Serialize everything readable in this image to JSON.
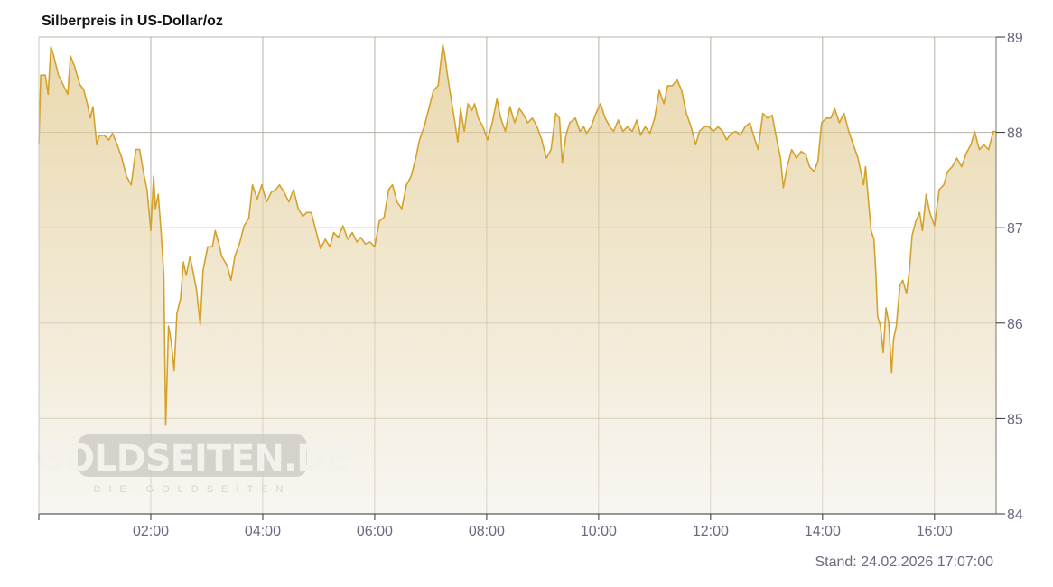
{
  "chart_data": {
    "type": "area",
    "title": "Silberpreis in US-Dollar/oz",
    "xlabel": "",
    "ylabel": "",
    "xlim": [
      "00:00",
      "17:06"
    ],
    "ylim": [
      84,
      89
    ],
    "y_axis_position": "right",
    "grid": true,
    "x_ticks": [
      "02:00",
      "04:00",
      "06:00",
      "08:00",
      "10:00",
      "12:00",
      "14:00",
      "16:00"
    ],
    "y_ticks": [
      84,
      85,
      86,
      87,
      88,
      89
    ],
    "footer": "Stand: 24.02.2026 17:07:00",
    "watermark": {
      "main": "GOLDSEITEN.DE",
      "sub": "DIE·GOLDSEITEN"
    },
    "colors": {
      "line": "#d4a22c",
      "fill_top": "#ead9ae",
      "fill_bottom": "#f8f6f2",
      "grid": "#c8c8c8"
    },
    "series": [
      {
        "points": [
          [
            "00:00",
            87.87
          ],
          [
            "00:02",
            88.6
          ],
          [
            "00:07",
            88.6
          ],
          [
            "00:10",
            88.4
          ],
          [
            "00:13",
            88.9
          ],
          [
            "00:16",
            88.8
          ],
          [
            "00:21",
            88.6
          ],
          [
            "00:26",
            88.5
          ],
          [
            "00:31",
            88.4
          ],
          [
            "00:34",
            88.8
          ],
          [
            "00:38",
            88.7
          ],
          [
            "00:44",
            88.5
          ],
          [
            "00:48",
            88.45
          ],
          [
            "00:52",
            88.3
          ],
          [
            "00:55",
            88.15
          ],
          [
            "00:58",
            88.27
          ],
          [
            "01:02",
            87.87
          ],
          [
            "01:05",
            87.97
          ],
          [
            "01:10",
            87.97
          ],
          [
            "01:15",
            87.92
          ],
          [
            "01:19",
            87.99
          ],
          [
            "01:24",
            87.87
          ],
          [
            "01:29",
            87.73
          ],
          [
            "01:34",
            87.54
          ],
          [
            "01:39",
            87.45
          ],
          [
            "01:44",
            87.82
          ],
          [
            "01:48",
            87.82
          ],
          [
            "01:53",
            87.54
          ],
          [
            "01:56",
            87.4
          ],
          [
            "02:00",
            86.97
          ],
          [
            "02:03",
            87.54
          ],
          [
            "02:05",
            87.2
          ],
          [
            "02:08",
            87.35
          ],
          [
            "02:11",
            86.97
          ],
          [
            "02:14",
            86.5
          ],
          [
            "02:16",
            84.93
          ],
          [
            "02:19",
            85.97
          ],
          [
            "02:22",
            85.8
          ],
          [
            "02:25",
            85.5
          ],
          [
            "02:28",
            86.1
          ],
          [
            "02:32",
            86.26
          ],
          [
            "02:35",
            86.64
          ],
          [
            "02:38",
            86.5
          ],
          [
            "02:42",
            86.7
          ],
          [
            "02:45",
            86.55
          ],
          [
            "02:49",
            86.35
          ],
          [
            "02:53",
            85.98
          ],
          [
            "02:56",
            86.55
          ],
          [
            "03:01",
            86.8
          ],
          [
            "03:06",
            86.8
          ],
          [
            "03:09",
            86.97
          ],
          [
            "03:13",
            86.83
          ],
          [
            "03:16",
            86.7
          ],
          [
            "03:22",
            86.6
          ],
          [
            "03:26",
            86.45
          ],
          [
            "03:30",
            86.7
          ],
          [
            "03:35",
            86.83
          ],
          [
            "03:40",
            87.02
          ],
          [
            "03:45",
            87.1
          ],
          [
            "03:49",
            87.45
          ],
          [
            "03:54",
            87.3
          ],
          [
            "03:59",
            87.45
          ],
          [
            "04:04",
            87.27
          ],
          [
            "04:09",
            87.37
          ],
          [
            "04:14",
            87.4
          ],
          [
            "04:18",
            87.45
          ],
          [
            "04:23",
            87.37
          ],
          [
            "04:28",
            87.27
          ],
          [
            "04:33",
            87.4
          ],
          [
            "04:38",
            87.2
          ],
          [
            "04:43",
            87.12
          ],
          [
            "04:47",
            87.16
          ],
          [
            "04:52",
            87.16
          ],
          [
            "04:57",
            86.97
          ],
          [
            "05:02",
            86.78
          ],
          [
            "05:07",
            86.88
          ],
          [
            "05:12",
            86.8
          ],
          [
            "05:16",
            86.95
          ],
          [
            "05:21",
            86.9
          ],
          [
            "05:26",
            87.02
          ],
          [
            "05:31",
            86.88
          ],
          [
            "05:36",
            86.95
          ],
          [
            "05:41",
            86.85
          ],
          [
            "05:45",
            86.9
          ],
          [
            "05:50",
            86.83
          ],
          [
            "05:55",
            86.85
          ],
          [
            "06:00",
            86.8
          ],
          [
            "06:05",
            87.07
          ],
          [
            "06:10",
            87.11
          ],
          [
            "06:15",
            87.4
          ],
          [
            "06:19",
            87.45
          ],
          [
            "06:24",
            87.27
          ],
          [
            "06:29",
            87.2
          ],
          [
            "06:34",
            87.45
          ],
          [
            "06:39",
            87.54
          ],
          [
            "06:44",
            87.73
          ],
          [
            "06:48",
            87.92
          ],
          [
            "06:53",
            88.06
          ],
          [
            "06:58",
            88.25
          ],
          [
            "07:03",
            88.44
          ],
          [
            "07:08",
            88.49
          ],
          [
            "07:13",
            88.92
          ],
          [
            "07:15",
            88.82
          ],
          [
            "07:18",
            88.6
          ],
          [
            "07:22",
            88.35
          ],
          [
            "07:26",
            88.1
          ],
          [
            "07:29",
            87.9
          ],
          [
            "07:32",
            88.25
          ],
          [
            "07:36",
            88.01
          ],
          [
            "07:40",
            88.3
          ],
          [
            "07:44",
            88.23
          ],
          [
            "07:47",
            88.3
          ],
          [
            "07:51",
            88.15
          ],
          [
            "07:56",
            88.06
          ],
          [
            "08:01",
            87.92
          ],
          [
            "08:06",
            88.1
          ],
          [
            "08:11",
            88.35
          ],
          [
            "08:15",
            88.15
          ],
          [
            "08:20",
            88.01
          ],
          [
            "08:25",
            88.27
          ],
          [
            "08:30",
            88.1
          ],
          [
            "08:35",
            88.25
          ],
          [
            "08:40",
            88.18
          ],
          [
            "08:44",
            88.1
          ],
          [
            "08:49",
            88.15
          ],
          [
            "08:54",
            88.06
          ],
          [
            "08:59",
            87.92
          ],
          [
            "09:04",
            87.73
          ],
          [
            "09:09",
            87.82
          ],
          [
            "09:14",
            88.2
          ],
          [
            "09:18",
            88.15
          ],
          [
            "09:21",
            87.68
          ],
          [
            "09:25",
            87.97
          ],
          [
            "09:29",
            88.1
          ],
          [
            "09:35",
            88.15
          ],
          [
            "09:40",
            88.01
          ],
          [
            "09:44",
            88.06
          ],
          [
            "09:47",
            87.99
          ],
          [
            "09:52",
            88.06
          ],
          [
            "09:57",
            88.2
          ],
          [
            "10:02",
            88.3
          ],
          [
            "10:07",
            88.15
          ],
          [
            "10:12",
            88.06
          ],
          [
            "10:16",
            88.01
          ],
          [
            "10:21",
            88.13
          ],
          [
            "10:26",
            88.01
          ],
          [
            "10:31",
            88.06
          ],
          [
            "10:36",
            88.01
          ],
          [
            "10:41",
            88.13
          ],
          [
            "10:45",
            87.97
          ],
          [
            "10:50",
            88.06
          ],
          [
            "10:55",
            87.99
          ],
          [
            "11:00",
            88.15
          ],
          [
            "11:05",
            88.44
          ],
          [
            "11:10",
            88.3
          ],
          [
            "11:14",
            88.49
          ],
          [
            "11:19",
            88.49
          ],
          [
            "11:24",
            88.55
          ],
          [
            "11:29",
            88.44
          ],
          [
            "11:34",
            88.2
          ],
          [
            "11:39",
            88.06
          ],
          [
            "11:44",
            87.87
          ],
          [
            "11:48",
            88.01
          ],
          [
            "11:53",
            88.06
          ],
          [
            "11:58",
            88.06
          ],
          [
            "12:03",
            88.01
          ],
          [
            "12:08",
            88.06
          ],
          [
            "12:13",
            88.01
          ],
          [
            "12:17",
            87.92
          ],
          [
            "12:22",
            87.99
          ],
          [
            "12:27",
            88.01
          ],
          [
            "12:32",
            87.97
          ],
          [
            "12:37",
            88.06
          ],
          [
            "12:42",
            88.1
          ],
          [
            "12:46",
            87.97
          ],
          [
            "12:51",
            87.82
          ],
          [
            "12:56",
            88.2
          ],
          [
            "13:01",
            88.15
          ],
          [
            "13:06",
            88.18
          ],
          [
            "13:11",
            87.92
          ],
          [
            "13:15",
            87.73
          ],
          [
            "13:18",
            87.42
          ],
          [
            "13:22",
            87.64
          ],
          [
            "13:27",
            87.82
          ],
          [
            "13:32",
            87.73
          ],
          [
            "13:37",
            87.8
          ],
          [
            "13:42",
            87.77
          ],
          [
            "13:46",
            87.64
          ],
          [
            "13:51",
            87.59
          ],
          [
            "13:55",
            87.7
          ],
          [
            "13:59",
            88.1
          ],
          [
            "14:04",
            88.15
          ],
          [
            "14:09",
            88.15
          ],
          [
            "14:13",
            88.25
          ],
          [
            "14:18",
            88.1
          ],
          [
            "14:23",
            88.2
          ],
          [
            "14:28",
            88.01
          ],
          [
            "14:33",
            87.87
          ],
          [
            "14:38",
            87.73
          ],
          [
            "14:41",
            87.59
          ],
          [
            "14:44",
            87.45
          ],
          [
            "14:46",
            87.64
          ],
          [
            "14:49",
            87.3
          ],
          [
            "14:52",
            86.97
          ],
          [
            "14:55",
            86.88
          ],
          [
            "14:57",
            86.55
          ],
          [
            "14:59",
            86.07
          ],
          [
            "15:02",
            85.97
          ],
          [
            "15:05",
            85.69
          ],
          [
            "15:08",
            86.16
          ],
          [
            "15:11",
            86.0
          ],
          [
            "15:14",
            85.48
          ],
          [
            "15:16",
            85.83
          ],
          [
            "15:19",
            85.97
          ],
          [
            "15:23",
            86.4
          ],
          [
            "15:26",
            86.45
          ],
          [
            "15:30",
            86.31
          ],
          [
            "15:33",
            86.55
          ],
          [
            "15:36",
            86.92
          ],
          [
            "15:40",
            87.07
          ],
          [
            "15:44",
            87.16
          ],
          [
            "15:47",
            86.97
          ],
          [
            "15:51",
            87.35
          ],
          [
            "15:55",
            87.16
          ],
          [
            "16:00",
            87.02
          ],
          [
            "16:05",
            87.4
          ],
          [
            "16:10",
            87.45
          ],
          [
            "16:14",
            87.59
          ],
          [
            "16:19",
            87.64
          ],
          [
            "16:24",
            87.73
          ],
          [
            "16:29",
            87.64
          ],
          [
            "16:34",
            87.78
          ],
          [
            "16:39",
            87.87
          ],
          [
            "16:43",
            88.01
          ],
          [
            "16:48",
            87.82
          ],
          [
            "16:53",
            87.87
          ],
          [
            "16:58",
            87.82
          ],
          [
            "17:03",
            88.01
          ],
          [
            "17:06",
            88.01
          ]
        ]
      }
    ]
  }
}
